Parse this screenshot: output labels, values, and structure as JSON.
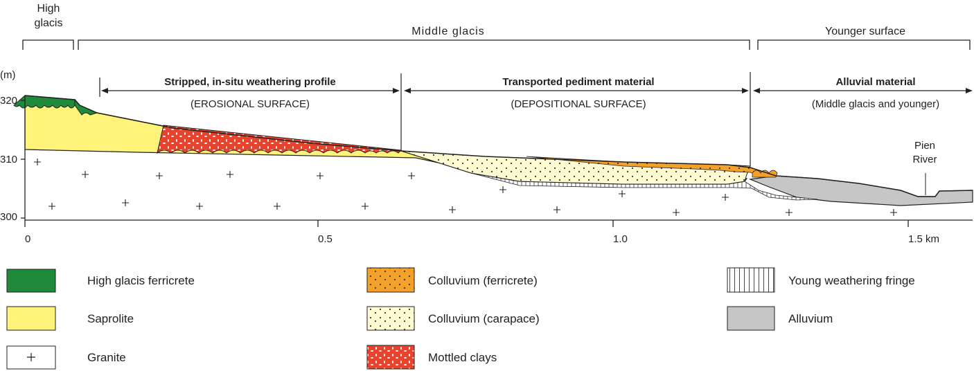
{
  "headers": {
    "high_glacis": [
      "High",
      "glacis"
    ],
    "middle_glacis": "Middle glacis",
    "younger_surface": "Younger surface"
  },
  "sections": {
    "stripped": {
      "title": "Stripped, in-situ weathering profile",
      "subtitle": "(EROSIONAL SURFACE)"
    },
    "transported": {
      "title": "Transported pediment material",
      "subtitle": "(DEPOSITIONAL SURFACE)"
    },
    "alluvial": {
      "title": "Alluvial material",
      "subtitle": "(Middle glacis and younger)"
    }
  },
  "axes": {
    "y_unit": "(m)",
    "y_ticks": [
      "320",
      "310",
      "300"
    ],
    "x_ticks": [
      "0",
      "0.5",
      "1.0",
      "1.5 km"
    ]
  },
  "annotations": {
    "river": [
      "Pien",
      "River"
    ]
  },
  "legend": [
    {
      "id": "high-glacis-ferricrete",
      "label": "High glacis ferricrete",
      "pattern": "ferricrete",
      "color": "#1f8a3c"
    },
    {
      "id": "saprolite",
      "label": "Saprolite",
      "pattern": "saprolite",
      "color": "#fff37a"
    },
    {
      "id": "granite",
      "label": "Granite",
      "pattern": "granite",
      "color": "#ffffff"
    },
    {
      "id": "colluvium-ferricrete",
      "label": "Colluvium (ferricrete)",
      "pattern": "coll-ferr",
      "color": "#f4a12a"
    },
    {
      "id": "colluvium-carapace",
      "label": "Colluvium (carapace)",
      "pattern": "coll-cara",
      "color": "#fffbd2"
    },
    {
      "id": "mottled-clays",
      "label": "Mottled clays",
      "pattern": "mottled",
      "color": "#e8432c"
    },
    {
      "id": "young-weathering-fringe",
      "label": "Young weathering fringe",
      "pattern": "fringe",
      "color": "#ffffff"
    },
    {
      "id": "alluvium",
      "label": "Alluvium",
      "pattern": "alluvium",
      "color": "#c6c6c6"
    }
  ]
}
